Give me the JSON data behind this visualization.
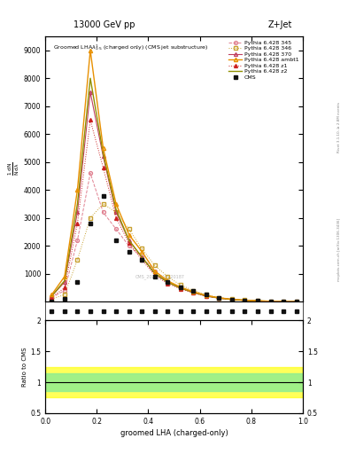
{
  "title_top": "13000 GeV pp",
  "title_right": "Z+Jet",
  "xlabel": "groomed LHA (charged-only)",
  "watermark": "CMS_2021_PAS920187",
  "right_label_top": "Rivet 3.1.10, ≥ 2.8M events",
  "right_label_bot": "mcplots.cern.ch [arXiv:1306.3436]",
  "x_data": [
    0.025,
    0.075,
    0.125,
    0.175,
    0.225,
    0.275,
    0.325,
    0.375,
    0.425,
    0.475,
    0.525,
    0.575,
    0.625,
    0.675,
    0.725,
    0.775,
    0.825,
    0.875,
    0.925,
    0.975
  ],
  "cms_data": [
    10,
    100,
    700,
    2800,
    3800,
    2200,
    1800,
    1500,
    900,
    700,
    500,
    400,
    250,
    150,
    80,
    50,
    30,
    15,
    8,
    5
  ],
  "py345_data": [
    150,
    400,
    2200,
    4600,
    3200,
    2600,
    2000,
    1600,
    1100,
    700,
    500,
    350,
    220,
    130,
    80,
    50,
    30,
    15,
    8,
    5
  ],
  "py346_data": [
    100,
    250,
    1500,
    3000,
    3500,
    3200,
    2600,
    1900,
    1300,
    900,
    600,
    400,
    250,
    150,
    90,
    55,
    32,
    18,
    10,
    5
  ],
  "py370_data": [
    200,
    700,
    3200,
    7500,
    5200,
    3200,
    2200,
    1600,
    1000,
    700,
    480,
    330,
    200,
    130,
    75,
    48,
    28,
    14,
    8,
    4
  ],
  "pyambt1_data": [
    250,
    900,
    4000,
    9000,
    5500,
    3500,
    2400,
    1800,
    1100,
    750,
    520,
    360,
    220,
    140,
    85,
    52,
    30,
    15,
    8,
    4
  ],
  "pyz1_data": [
    150,
    500,
    2800,
    6500,
    4800,
    3000,
    2100,
    1500,
    950,
    650,
    460,
    310,
    190,
    120,
    70,
    44,
    26,
    13,
    7,
    4
  ],
  "pyz2_data": [
    200,
    750,
    3500,
    8000,
    5300,
    3300,
    2200,
    1600,
    1020,
    700,
    490,
    340,
    210,
    130,
    78,
    50,
    29,
    14,
    8,
    4
  ],
  "ratio_green_lo": 0.85,
  "ratio_green_hi": 1.15,
  "ratio_yellow_lo": 0.75,
  "ratio_yellow_hi": 1.25,
  "ylim_main": [
    0,
    9500
  ],
  "ylim_ratio": [
    0.5,
    2.0
  ],
  "yticks_main": [
    1000,
    2000,
    3000,
    4000,
    5000,
    6000,
    7000,
    8000,
    9000
  ],
  "yticks_ratio": [
    0.5,
    1.0,
    1.5,
    2.0
  ],
  "colors": {
    "cms": "#111111",
    "py345": "#e08090",
    "py346": "#c8a030",
    "py370": "#c04060",
    "pyambt1": "#e89000",
    "pyz1": "#cc2020",
    "pyz2": "#909000"
  }
}
